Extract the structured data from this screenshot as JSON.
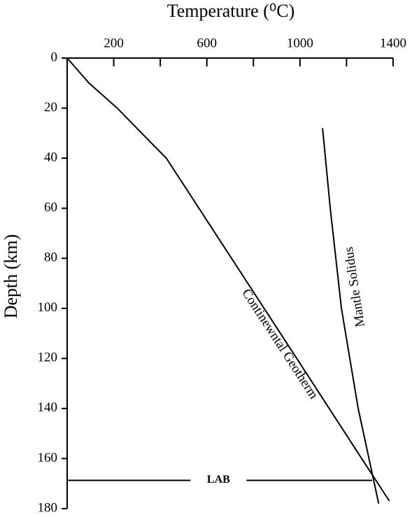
{
  "chart_data": {
    "type": "line",
    "x_label": "Temperature (⁰C)",
    "y_label": "Depth (km)",
    "xlim": [
      0,
      1400
    ],
    "xticks": [
      200,
      600,
      1000,
      1400
    ],
    "xminorticks": [
      400,
      800,
      1200
    ],
    "ylim": [
      0,
      180
    ],
    "yticks": [
      0,
      20,
      40,
      60,
      80,
      100,
      120,
      140,
      160,
      180
    ],
    "y_inverted": true,
    "x_axis_position": "top",
    "color": "#000000",
    "series": [
      {
        "name": "Continewntal Geotherm",
        "x": [
          0,
          94,
          215,
          320,
          426,
          706,
          986,
          1265,
          1384
        ],
        "values": [
          0,
          10,
          20,
          30,
          40,
          80,
          120,
          160,
          177
        ]
      },
      {
        "name": "Mantle Solidus",
        "x": [
          1097,
          1130,
          1178,
          1250,
          1338
        ],
        "values": [
          28,
          60,
          100,
          140,
          178
        ]
      }
    ],
    "lab": {
      "label": "LAB",
      "depth": 168.7
    }
  }
}
